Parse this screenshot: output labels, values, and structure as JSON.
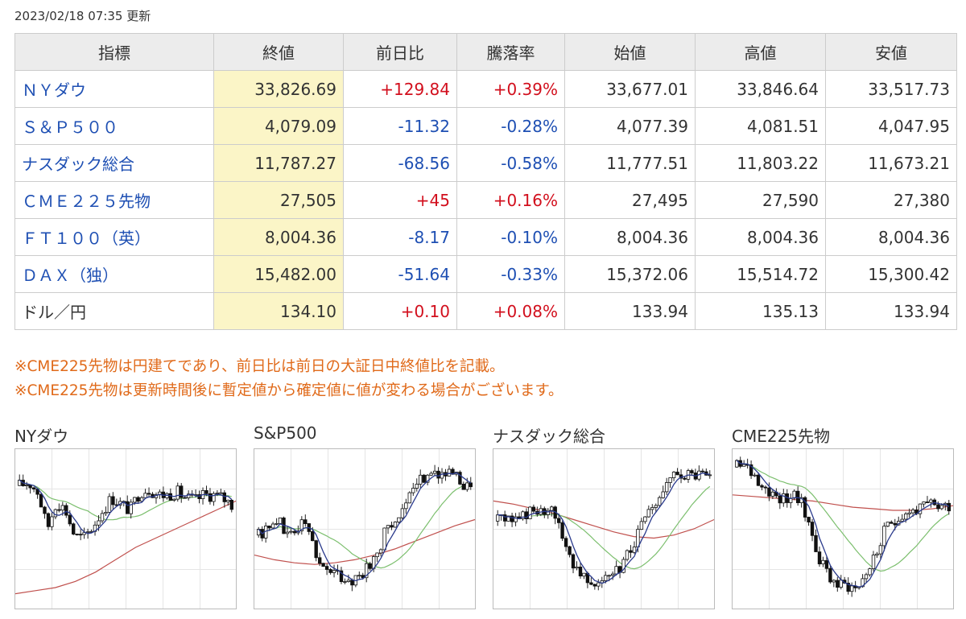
{
  "updated_text": "2023/02/18 07:35 更新",
  "table": {
    "headers": [
      "指標",
      "終値",
      "前日比",
      "騰落率",
      "始値",
      "高値",
      "安値"
    ],
    "rows": [
      {
        "name": "ＮＹダウ",
        "close": "33,826.69",
        "change": "+129.84",
        "pct": "+0.39%",
        "open": "33,677.01",
        "high": "33,846.64",
        "low": "33,517.73",
        "dir": "pos",
        "link": true
      },
      {
        "name": "Ｓ＆Ｐ５００",
        "close": "4,079.09",
        "change": "-11.32",
        "pct": "-0.28%",
        "open": "4,077.39",
        "high": "4,081.51",
        "low": "4,047.95",
        "dir": "neg",
        "link": true
      },
      {
        "name": "ナスダック総合",
        "close": "11,787.27",
        "change": "-68.56",
        "pct": "-0.58%",
        "open": "11,777.51",
        "high": "11,803.22",
        "low": "11,673.21",
        "dir": "neg",
        "link": true
      },
      {
        "name": "ＣＭＥ２２５先物",
        "close": "27,505",
        "change": "+45",
        "pct": "+0.16%",
        "open": "27,495",
        "high": "27,590",
        "low": "27,380",
        "dir": "pos",
        "link": true
      },
      {
        "name": "ＦＴ１００（英）",
        "close": "8,004.36",
        "change": "-8.17",
        "pct": "-0.10%",
        "open": "8,004.36",
        "high": "8,004.36",
        "low": "8,004.36",
        "dir": "neg",
        "link": true
      },
      {
        "name": "ＤＡＸ（独）",
        "close": "15,482.00",
        "change": "-51.64",
        "pct": "-0.33%",
        "open": "15,372.06",
        "high": "15,514.72",
        "low": "15,300.42",
        "dir": "neg",
        "link": true
      },
      {
        "name": "ドル／円",
        "close": "134.10",
        "change": "+0.10",
        "pct": "+0.08%",
        "open": "133.94",
        "high": "135.13",
        "low": "133.94",
        "dir": "pos",
        "link": false
      }
    ]
  },
  "notes": [
    "※CME225先物は円建てであり、前日比は前日の大証日中終値比を記載。",
    "※CME225先物は更新時間後に暫定値から確定値に値が変わる場合がございます。"
  ],
  "charts": [
    {
      "title": "NYダウ",
      "shape": [
        0.78,
        0.8,
        0.74,
        0.5,
        0.68,
        0.62,
        0.45,
        0.44,
        0.52,
        0.62,
        0.7,
        0.66,
        0.62,
        0.74,
        0.76,
        0.72,
        0.72,
        0.74,
        0.7,
        0.68,
        0.72,
        0.72,
        0.7,
        0.66
      ],
      "long_ma": [
        0.08,
        0.1,
        0.12,
        0.16,
        0.22,
        0.3,
        0.38,
        0.44,
        0.5,
        0.56,
        0.62,
        0.68
      ]
    },
    {
      "title": "S&P500",
      "shape": [
        0.46,
        0.5,
        0.58,
        0.45,
        0.5,
        0.55,
        0.38,
        0.25,
        0.22,
        0.18,
        0.17,
        0.2,
        0.25,
        0.36,
        0.52,
        0.58,
        0.65,
        0.76,
        0.85,
        0.88,
        0.86,
        0.84,
        0.8,
        0.78
      ],
      "long_ma": [
        0.33,
        0.3,
        0.28,
        0.27,
        0.28,
        0.3,
        0.33,
        0.37,
        0.42,
        0.47,
        0.52,
        0.56
      ]
    },
    {
      "title": "ナスダック総合",
      "shape": [
        0.55,
        0.58,
        0.55,
        0.6,
        0.62,
        0.58,
        0.6,
        0.46,
        0.3,
        0.22,
        0.18,
        0.16,
        0.18,
        0.22,
        0.32,
        0.45,
        0.55,
        0.65,
        0.74,
        0.82,
        0.86,
        0.84,
        0.85,
        0.83
      ],
      "long_ma": [
        0.68,
        0.66,
        0.63,
        0.6,
        0.56,
        0.52,
        0.48,
        0.45,
        0.44,
        0.46,
        0.5,
        0.56
      ]
    },
    {
      "title": "CME225先物",
      "shape": [
        0.9,
        0.9,
        0.84,
        0.78,
        0.72,
        0.7,
        0.72,
        0.66,
        0.5,
        0.3,
        0.2,
        0.14,
        0.14,
        0.12,
        0.22,
        0.32,
        0.48,
        0.56,
        0.6,
        0.62,
        0.63,
        0.66,
        0.65,
        0.66
      ],
      "long_ma": [
        0.72,
        0.71,
        0.7,
        0.69,
        0.68,
        0.66,
        0.64,
        0.63,
        0.62,
        0.62,
        0.63,
        0.65
      ]
    }
  ],
  "colors": {
    "positive": "#d20f1d",
    "negative": "#1e4fb3",
    "note": "#e06a1a",
    "close_col_bg": "#fbf5c7",
    "short_ma": "#2a3a8c",
    "mid_ma": "#7cbf6e",
    "long_ma": "#c0504d"
  }
}
